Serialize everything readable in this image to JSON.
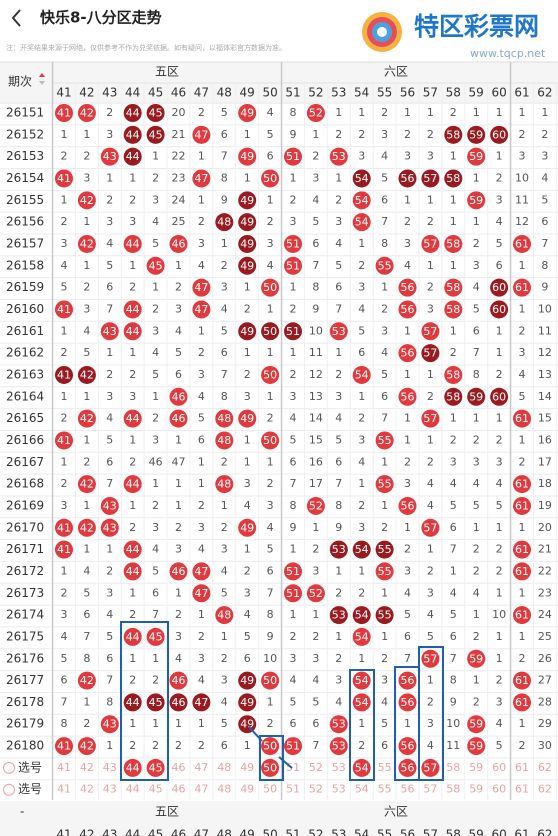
{
  "header": {
    "title": "快乐8-八分区走势",
    "logo": "特区彩票网",
    "url": "www.tqcp.net",
    "note": "注：开奖结果来源于网络，仅供参考不作为兑奖依据。如有疑问，以福体彩官方数据为准。"
  },
  "table": {
    "period_label": "期次",
    "zones": [
      "五区",
      "六区"
    ],
    "columns": [
      41,
      42,
      43,
      44,
      45,
      46,
      47,
      48,
      49,
      50,
      51,
      52,
      53,
      54,
      55,
      56,
      57,
      58,
      59,
      60,
      61,
      62
    ],
    "rows": [
      {
        "period": "26151",
        "cells": [
          41,
          42,
          2,
          44,
          45,
          20,
          2,
          5,
          49,
          4,
          8,
          52,
          1,
          1,
          2,
          1,
          1,
          2,
          1,
          1,
          1,
          1
        ],
        "dark": [
          44,
          45
        ]
      },
      {
        "period": "26152",
        "cells": [
          1,
          1,
          3,
          44,
          45,
          21,
          47,
          6,
          1,
          5,
          9,
          1,
          2,
          2,
          3,
          2,
          2,
          58,
          59,
          60,
          2,
          2
        ],
        "dark": [
          44,
          45,
          58,
          59,
          60
        ]
      },
      {
        "period": "26153",
        "cells": [
          2,
          2,
          43,
          44,
          1,
          22,
          1,
          7,
          49,
          6,
          51,
          2,
          53,
          3,
          4,
          3,
          3,
          1,
          59,
          1,
          3,
          3
        ],
        "dark": [
          44
        ]
      },
      {
        "period": "26154",
        "cells": [
          41,
          3,
          1,
          1,
          2,
          23,
          47,
          8,
          1,
          50,
          1,
          3,
          1,
          54,
          5,
          56,
          57,
          58,
          1,
          2,
          10,
          4
        ],
        "dark": [
          54,
          56,
          57,
          58
        ]
      },
      {
        "period": "26155",
        "cells": [
          1,
          42,
          2,
          2,
          3,
          24,
          1,
          9,
          49,
          1,
          2,
          4,
          2,
          54,
          6,
          1,
          1,
          1,
          59,
          3,
          11,
          5
        ],
        "dark": [
          49
        ]
      },
      {
        "period": "26156",
        "cells": [
          2,
          1,
          3,
          3,
          4,
          25,
          2,
          48,
          49,
          2,
          3,
          5,
          3,
          54,
          7,
          2,
          2,
          1,
          1,
          4,
          12,
          6
        ],
        "dark": [
          48,
          49
        ]
      },
      {
        "period": "26157",
        "cells": [
          3,
          42,
          4,
          44,
          5,
          46,
          3,
          1,
          49,
          3,
          51,
          6,
          4,
          1,
          8,
          3,
          57,
          58,
          2,
          5,
          61,
          7
        ],
        "dark": [
          49
        ]
      },
      {
        "period": "26158",
        "cells": [
          4,
          1,
          5,
          1,
          45,
          1,
          4,
          2,
          49,
          4,
          51,
          7,
          5,
          2,
          55,
          4,
          1,
          1,
          3,
          6,
          1,
          8
        ],
        "dark": [
          49
        ]
      },
      {
        "period": "26159",
        "cells": [
          5,
          2,
          6,
          2,
          1,
          2,
          47,
          3,
          1,
          50,
          1,
          8,
          6,
          3,
          1,
          56,
          2,
          58,
          4,
          60,
          61,
          9
        ],
        "dark": [
          60
        ]
      },
      {
        "period": "26160",
        "cells": [
          41,
          3,
          7,
          44,
          2,
          3,
          47,
          4,
          2,
          1,
          2,
          9,
          7,
          4,
          2,
          56,
          3,
          58,
          5,
          60,
          1,
          10
        ],
        "dark": [
          60
        ]
      },
      {
        "period": "26161",
        "cells": [
          1,
          4,
          43,
          44,
          3,
          4,
          1,
          5,
          49,
          50,
          51,
          10,
          53,
          5,
          3,
          1,
          57,
          1,
          6,
          1,
          2,
          11
        ],
        "dark": [
          49,
          50,
          51
        ]
      },
      {
        "period": "26162",
        "cells": [
          2,
          5,
          1,
          1,
          4,
          5,
          2,
          6,
          1,
          1,
          1,
          11,
          1,
          6,
          4,
          56,
          57,
          2,
          7,
          1,
          3,
          12
        ],
        "dark": [
          57
        ]
      },
      {
        "period": "26163",
        "cells": [
          41,
          42,
          2,
          2,
          5,
          6,
          3,
          7,
          2,
          50,
          2,
          12,
          2,
          54,
          5,
          1,
          1,
          58,
          8,
          2,
          4,
          13
        ],
        "dark": [
          41,
          42
        ]
      },
      {
        "period": "26164",
        "cells": [
          1,
          1,
          3,
          3,
          1,
          46,
          4,
          8,
          3,
          1,
          3,
          13,
          3,
          1,
          6,
          56,
          2,
          58,
          59,
          60,
          5,
          14
        ],
        "dark": [
          58,
          59,
          60
        ]
      },
      {
        "period": "26165",
        "cells": [
          2,
          42,
          4,
          44,
          2,
          46,
          5,
          48,
          49,
          2,
          4,
          14,
          4,
          2,
          7,
          1,
          57,
          1,
          1,
          1,
          61,
          15
        ],
        "dark": []
      },
      {
        "period": "26166",
        "cells": [
          41,
          1,
          5,
          1,
          3,
          1,
          6,
          48,
          1,
          50,
          5,
          15,
          5,
          3,
          55,
          1,
          1,
          2,
          2,
          2,
          1,
          16
        ],
        "dark": []
      },
      {
        "period": "26167",
        "cells": [
          1,
          2,
          6,
          2,
          46,
          47,
          1,
          2,
          1,
          1,
          6,
          16,
          6,
          4,
          1,
          2,
          2,
          3,
          3,
          3,
          2,
          17
        ],
        "dark": []
      },
      {
        "period": "26168",
        "cells": [
          2,
          42,
          7,
          44,
          1,
          1,
          1,
          48,
          3,
          2,
          7,
          17,
          7,
          1,
          55,
          3,
          4,
          4,
          4,
          4,
          61,
          18
        ],
        "dark": []
      },
      {
        "period": "26169",
        "cells": [
          3,
          1,
          43,
          1,
          2,
          1,
          2,
          1,
          4,
          3,
          8,
          52,
          8,
          2,
          1,
          56,
          4,
          5,
          5,
          5,
          61,
          19
        ],
        "dark": []
      },
      {
        "period": "26170",
        "cells": [
          41,
          42,
          43,
          2,
          3,
          2,
          3,
          2,
          49,
          4,
          9,
          1,
          9,
          3,
          2,
          1,
          57,
          6,
          1,
          1,
          1,
          20
        ],
        "dark": []
      },
      {
        "period": "26171",
        "cells": [
          41,
          1,
          1,
          44,
          4,
          3,
          4,
          3,
          1,
          5,
          1,
          2,
          53,
          54,
          55,
          2,
          1,
          7,
          2,
          2,
          61,
          21
        ],
        "dark": [
          53,
          54,
          55
        ]
      },
      {
        "period": "26172",
        "cells": [
          1,
          4,
          2,
          44,
          5,
          46,
          47,
          4,
          2,
          6,
          51,
          3,
          1,
          1,
          55,
          3,
          2,
          1,
          2,
          2,
          61,
          22
        ],
        "dark": []
      },
      {
        "period": "26173",
        "cells": [
          2,
          5,
          3,
          1,
          6,
          1,
          47,
          5,
          3,
          7,
          51,
          52,
          2,
          2,
          1,
          4,
          3,
          4,
          4,
          1,
          1,
          23
        ],
        "dark": []
      },
      {
        "period": "26174",
        "cells": [
          3,
          6,
          4,
          2,
          7,
          2,
          1,
          48,
          4,
          8,
          1,
          1,
          53,
          54,
          55,
          5,
          4,
          5,
          1,
          10,
          61,
          24
        ],
        "dark": [
          53,
          54,
          55
        ]
      },
      {
        "period": "26175",
        "cells": [
          4,
          7,
          5,
          44,
          45,
          3,
          2,
          1,
          5,
          9,
          2,
          2,
          1,
          54,
          1,
          6,
          5,
          6,
          2,
          1,
          1,
          25
        ],
        "dark": []
      },
      {
        "period": "26176",
        "cells": [
          5,
          8,
          6,
          1,
          1,
          4,
          3,
          2,
          6,
          10,
          3,
          3,
          2,
          1,
          2,
          7,
          57,
          7,
          59,
          1,
          2,
          26
        ],
        "dark": []
      },
      {
        "period": "26177",
        "cells": [
          6,
          42,
          7,
          2,
          2,
          46,
          4,
          3,
          49,
          50,
          4,
          4,
          3,
          54,
          3,
          56,
          1,
          8,
          1,
          2,
          61,
          27
        ],
        "dark": [
          49
        ]
      },
      {
        "period": "26178",
        "cells": [
          7,
          1,
          8,
          44,
          45,
          46,
          47,
          4,
          49,
          1,
          5,
          5,
          4,
          54,
          4,
          56,
          2,
          9,
          2,
          3,
          61,
          28
        ],
        "dark": [
          44,
          45,
          46,
          47,
          49
        ]
      },
      {
        "period": "26179",
        "cells": [
          8,
          2,
          43,
          1,
          1,
          1,
          1,
          5,
          49,
          2,
          6,
          6,
          53,
          1,
          5,
          1,
          3,
          10,
          59,
          4,
          1,
          29
        ],
        "dark": [
          49
        ]
      },
      {
        "period": "26180",
        "cells": [
          41,
          42,
          1,
          2,
          2,
          2,
          2,
          6,
          1,
          50,
          51,
          7,
          53,
          2,
          6,
          56,
          4,
          11,
          59,
          5,
          2,
          30
        ],
        "dark": []
      }
    ],
    "select_rows": [
      {
        "label": "选号",
        "picked": [
          44,
          45,
          50,
          54,
          56,
          57
        ]
      },
      {
        "label": "选号",
        "picked": []
      }
    ],
    "footer_label": "-",
    "footer_zones": [
      "五区",
      "六区"
    ]
  }
}
